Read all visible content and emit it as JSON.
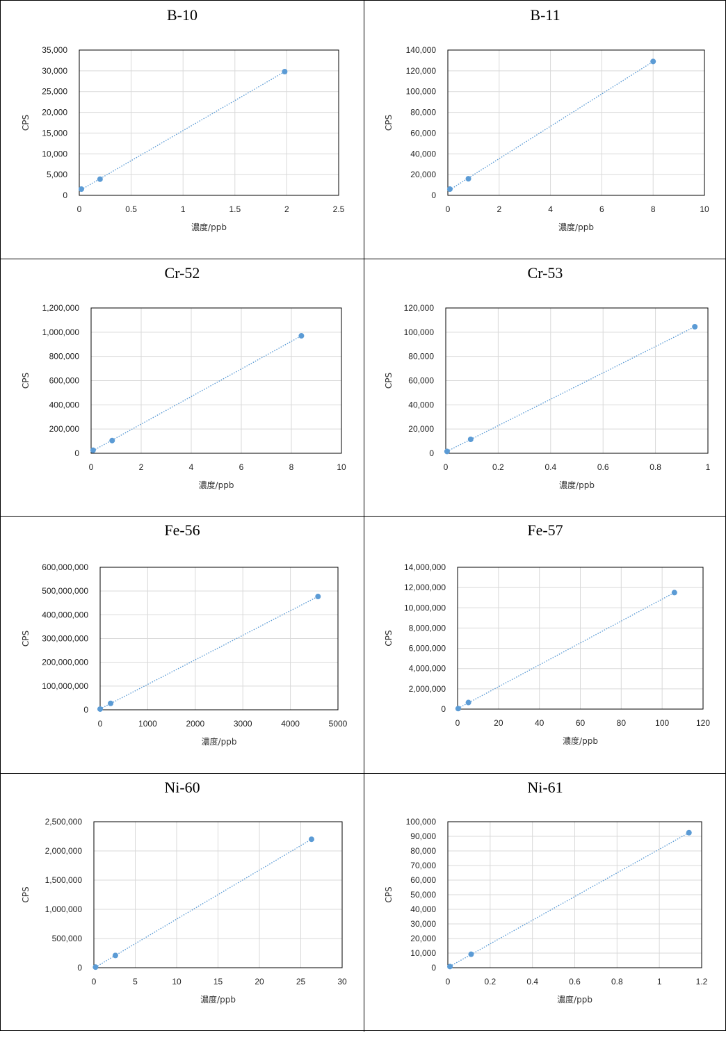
{
  "chart_data": [
    {
      "type": "scatter",
      "title": "B-10",
      "xlabel": "濃度/ppb",
      "ylabel": "CPS",
      "xlim": [
        0,
        2.5
      ],
      "ylim": [
        0,
        35000
      ],
      "xticks": [
        "0",
        "0.5",
        "1",
        "1.5",
        "2",
        "2.5"
      ],
      "yticks": [
        "0",
        "5,000",
        "10,000",
        "15,000",
        "20,000",
        "25,000",
        "30,000",
        "35,000"
      ],
      "grid": true,
      "trendline": "linear",
      "point_color": "#5b9bd5",
      "x": [
        0.02,
        0.2,
        1.98
      ],
      "y": [
        1500,
        3900,
        29800
      ]
    },
    {
      "type": "scatter",
      "title": "B-11",
      "xlabel": "濃度/ppb",
      "ylabel": "CPS",
      "xlim": [
        0,
        10
      ],
      "ylim": [
        0,
        140000
      ],
      "xticks": [
        "0",
        "2",
        "4",
        "6",
        "8",
        "10"
      ],
      "yticks": [
        "0",
        "20,000",
        "40,000",
        "60,000",
        "80,000",
        "100,000",
        "120,000",
        "140,000"
      ],
      "grid": true,
      "trendline": "linear",
      "point_color": "#5b9bd5",
      "x": [
        0.08,
        0.8,
        8.0
      ],
      "y": [
        6000,
        16000,
        129000
      ]
    },
    {
      "type": "scatter",
      "title": "Cr-52",
      "xlabel": "濃度/ppb",
      "ylabel": "CPS",
      "xlim": [
        0,
        10
      ],
      "ylim": [
        0,
        1200000
      ],
      "xticks": [
        "0",
        "2",
        "4",
        "6",
        "8",
        "10"
      ],
      "yticks": [
        "0",
        "200,000",
        "400,000",
        "600,000",
        "800,000",
        "1,000,000",
        "1,200,000"
      ],
      "grid": true,
      "trendline": "linear",
      "point_color": "#5b9bd5",
      "x": [
        0.08,
        0.84,
        8.4
      ],
      "y": [
        25000,
        105000,
        970000
      ]
    },
    {
      "type": "scatter",
      "title": "Cr-53",
      "xlabel": "濃度/ppb",
      "ylabel": "CPS",
      "xlim": [
        0,
        1
      ],
      "ylim": [
        0,
        120000
      ],
      "xticks": [
        "0",
        "0.2",
        "0.4",
        "0.6",
        "0.8",
        "1"
      ],
      "yticks": [
        "0",
        "20,000",
        "40,000",
        "60,000",
        "80,000",
        "100,000",
        "120,000"
      ],
      "grid": true,
      "trendline": "linear",
      "point_color": "#5b9bd5",
      "x": [
        0.005,
        0.095,
        0.95
      ],
      "y": [
        1500,
        11500,
        104500
      ]
    },
    {
      "type": "scatter",
      "title": "Fe-56",
      "xlabel": "濃度/ppb",
      "ylabel": "CPS",
      "xlim": [
        0,
        5000
      ],
      "ylim": [
        0,
        600000000
      ],
      "xticks": [
        "0",
        "1000",
        "2000",
        "3000",
        "4000",
        "5000"
      ],
      "yticks": [
        "0",
        "100,000,000",
        "200,000,000",
        "300,000,000",
        "400,000,000",
        "500,000,000",
        "600,000,000"
      ],
      "grid": true,
      "trendline": "linear",
      "point_color": "#5b9bd5",
      "x": [
        0,
        220,
        4580
      ],
      "y": [
        3000000,
        27000000,
        477000000
      ]
    },
    {
      "type": "scatter",
      "title": "Fe-57",
      "xlabel": "濃度/ppb",
      "ylabel": "CPS",
      "xlim": [
        0,
        120
      ],
      "ylim": [
        0,
        14000000
      ],
      "xticks": [
        "0",
        "20",
        "40",
        "60",
        "80",
        "100",
        "120"
      ],
      "yticks": [
        "0",
        "2,000,000",
        "4,000,000",
        "6,000,000",
        "8,000,000",
        "10,000,000",
        "12,000,000",
        "14,000,000"
      ],
      "grid": true,
      "trendline": "linear",
      "point_color": "#5b9bd5",
      "x": [
        0.3,
        5.3,
        106
      ],
      "y": [
        50000,
        650000,
        11500000
      ]
    },
    {
      "type": "scatter",
      "title": "Ni-60",
      "xlabel": "濃度/ppb",
      "ylabel": "CPS",
      "xlim": [
        0,
        30
      ],
      "ylim": [
        0,
        2500000
      ],
      "xticks": [
        "0",
        "5",
        "10",
        "15",
        "20",
        "25",
        "30"
      ],
      "yticks": [
        "0",
        "500,000",
        "1,000,000",
        "1,500,000",
        "2,000,000",
        "2,500,000"
      ],
      "grid": true,
      "trendline": "linear",
      "point_color": "#5b9bd5",
      "x": [
        0.2,
        2.6,
        26.3
      ],
      "y": [
        10000,
        210000,
        2200000
      ]
    },
    {
      "type": "scatter",
      "title": "Ni-61",
      "xlabel": "濃度/ppb",
      "ylabel": "CPS",
      "xlim": [
        0,
        1.2
      ],
      "ylim": [
        0,
        100000
      ],
      "xticks": [
        "0",
        "0.2",
        "0.4",
        "0.6",
        "0.8",
        "1",
        "1.2"
      ],
      "yticks": [
        "0",
        "10,000",
        "20,000",
        "30,000",
        "40,000",
        "50,000",
        "60,000",
        "70,000",
        "80,000",
        "90,000",
        "100,000"
      ],
      "grid": true,
      "trendline": "linear",
      "point_color": "#5b9bd5",
      "x": [
        0.01,
        0.11,
        1.14
      ],
      "y": [
        800,
        9200,
        92500
      ]
    }
  ]
}
